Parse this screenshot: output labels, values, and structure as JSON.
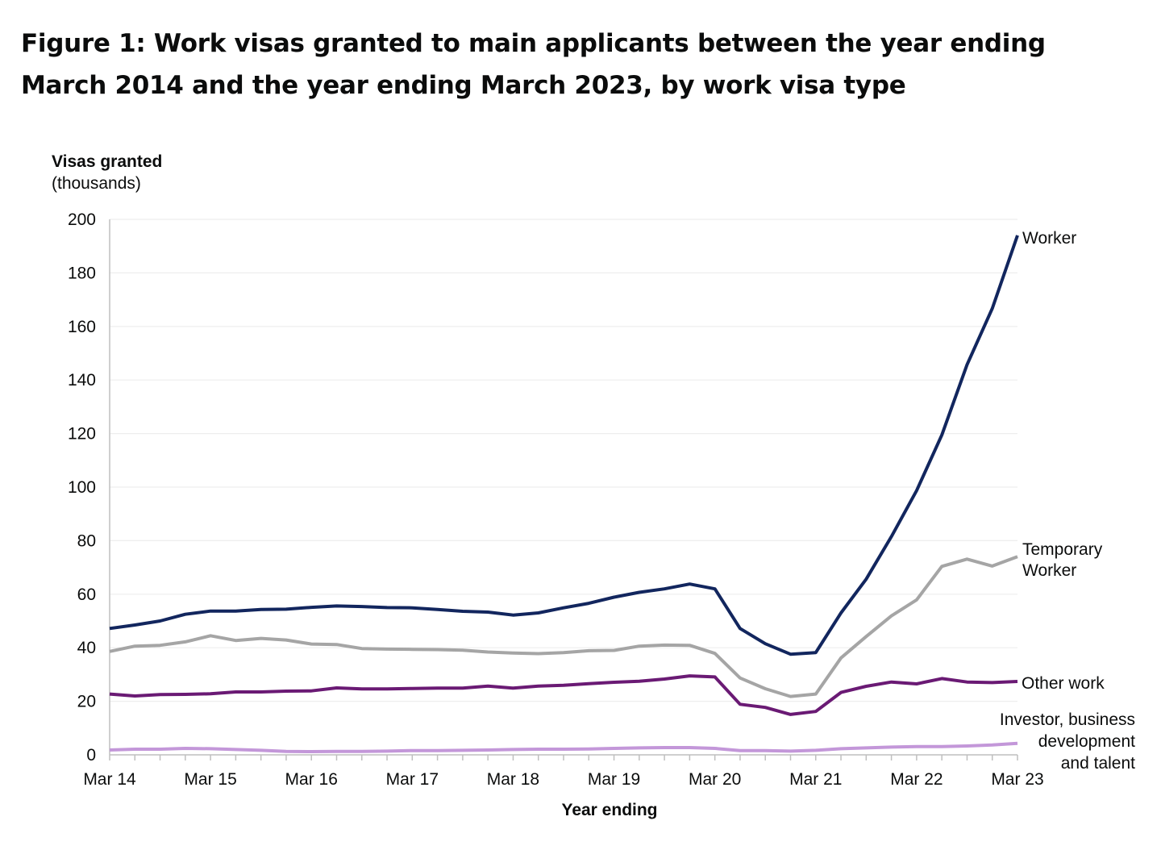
{
  "chart_data": {
    "type": "line",
    "title": "Figure 1: Work visas granted to main applicants between the year ending March 2014 and the year ending March 2023, by work visa type",
    "ylabel": "Visas granted",
    "ylabel_unit": "(thousands)",
    "xlabel": "Year ending",
    "ylim": [
      0,
      200
    ],
    "yticks": [
      0,
      20,
      40,
      60,
      80,
      100,
      120,
      140,
      160,
      180,
      200
    ],
    "xticks": [
      "Mar 14",
      "Mar 15",
      "Mar 16",
      "Mar 17",
      "Mar 18",
      "Mar 19",
      "Mar 20",
      "Mar 21",
      "Mar 22",
      "Mar 23"
    ],
    "grid": true,
    "legend": "inline labels at right end of lines",
    "x": [
      "Mar 14",
      "Jun 14",
      "Sep 14",
      "Dec 14",
      "Mar 15",
      "Jun 15",
      "Sep 15",
      "Dec 15",
      "Mar 16",
      "Jun 16",
      "Sep 16",
      "Dec 16",
      "Mar 17",
      "Jun 17",
      "Sep 17",
      "Dec 17",
      "Mar 18",
      "Jun 18",
      "Sep 18",
      "Dec 18",
      "Mar 19",
      "Jun 19",
      "Sep 19",
      "Dec 19",
      "Mar 20",
      "Jun 20",
      "Sep 20",
      "Dec 20",
      "Mar 21",
      "Jun 21",
      "Sep 21",
      "Dec 21",
      "Mar 22",
      "Jun 22",
      "Sep 22",
      "Dec 22",
      "Mar 23"
    ],
    "series": [
      {
        "name": "Worker",
        "color": "#12265e",
        "values": [
          47.2,
          48.5,
          50.0,
          52.5,
          53.7,
          53.7,
          54.3,
          54.4,
          55.1,
          55.6,
          55.4,
          55.0,
          54.9,
          54.3,
          53.6,
          53.3,
          52.2,
          53.0,
          54.9,
          56.6,
          58.9,
          60.7,
          62.0,
          63.8,
          62.0,
          47.2,
          41.5,
          37.6,
          38.2,
          53.0,
          65.6,
          81.5,
          98.7,
          119.5,
          145.7,
          166.7,
          194.0
        ]
      },
      {
        "name": "Temporary Worker",
        "label_lines": [
          "Temporary",
          "Worker"
        ],
        "color": "#a5a5a5",
        "values": [
          38.6,
          40.6,
          40.9,
          42.2,
          44.5,
          42.7,
          43.5,
          42.9,
          41.4,
          41.2,
          39.7,
          39.5,
          39.4,
          39.3,
          39.1,
          38.4,
          38.0,
          37.8,
          38.2,
          38.9,
          39.0,
          40.6,
          41.0,
          40.9,
          37.9,
          28.7,
          24.7,
          21.8,
          22.7,
          36.2,
          44.2,
          51.9,
          57.9,
          70.4,
          73.1,
          70.5,
          74.0
        ]
      },
      {
        "name": "Other work",
        "color": "#6a1a74",
        "values": [
          22.7,
          22.0,
          22.5,
          22.6,
          22.8,
          23.5,
          23.5,
          23.8,
          23.9,
          25.0,
          24.6,
          24.6,
          24.8,
          24.9,
          24.9,
          25.7,
          24.9,
          25.7,
          26.0,
          26.6,
          27.1,
          27.5,
          28.3,
          29.5,
          29.1,
          18.9,
          17.7,
          15.1,
          16.2,
          23.3,
          25.6,
          27.2,
          26.5,
          28.5,
          27.2,
          27.0,
          27.4
        ]
      },
      {
        "name": "Investor, business development and talent",
        "label_lines": [
          "Investor, business",
          "development",
          "and talent"
        ],
        "color": "#c397d9",
        "values": [
          1.8,
          2.1,
          2.1,
          2.4,
          2.3,
          2.0,
          1.7,
          1.3,
          1.2,
          1.3,
          1.3,
          1.4,
          1.6,
          1.6,
          1.7,
          1.8,
          2.0,
          2.1,
          2.1,
          2.2,
          2.4,
          2.6,
          2.7,
          2.7,
          2.4,
          1.6,
          1.6,
          1.4,
          1.7,
          2.3,
          2.6,
          2.9,
          3.1,
          3.1,
          3.3,
          3.7,
          4.3
        ]
      }
    ]
  }
}
